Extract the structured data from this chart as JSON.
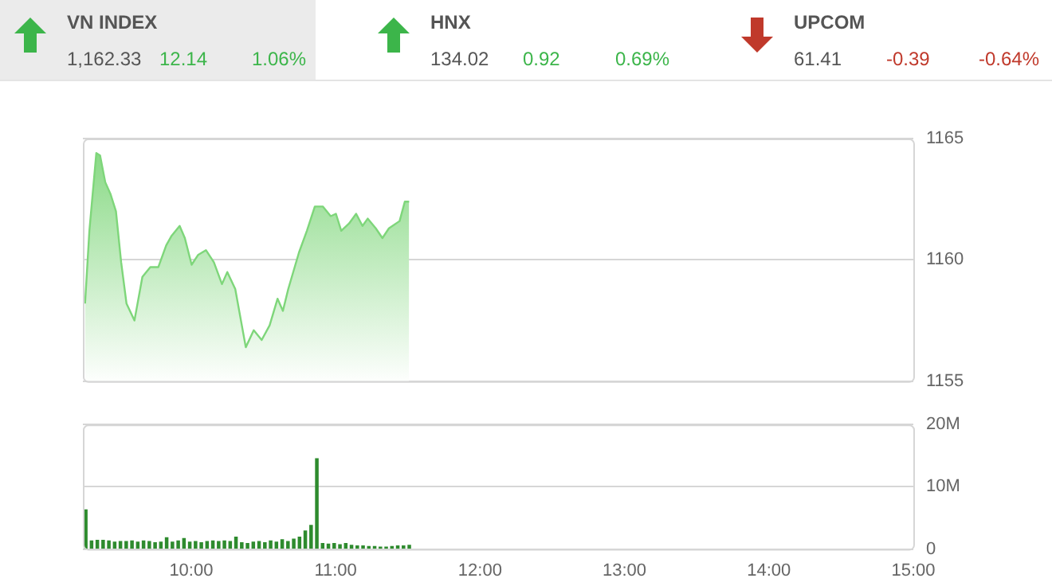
{
  "chart_data": [
    {
      "type": "other",
      "annotations": [
        "VN INDEX",
        "1,162.33",
        "12.14",
        "1.06%",
        "HNX",
        "134.02",
        "0.92",
        "0.69%",
        "UPCOM",
        "61.41",
        "-0.39",
        "-0.64%"
      ]
    },
    {
      "type": "area",
      "x": [
        9.265,
        9.295,
        9.343,
        9.369,
        9.405,
        9.442,
        9.479,
        9.515,
        9.552,
        9.607,
        9.662,
        9.717,
        9.772,
        9.827,
        9.865,
        9.92,
        9.956,
        10.003,
        10.047,
        10.102,
        10.157,
        10.213,
        10.25,
        10.305,
        10.378,
        10.433,
        10.488,
        10.543,
        10.598,
        10.635,
        10.672,
        10.746,
        10.801,
        10.856,
        10.911,
        10.966,
        11.002,
        11.039,
        11.093,
        11.142,
        11.186,
        11.222,
        11.278,
        11.324,
        11.369,
        11.443,
        11.479,
        11.509
      ],
      "series": [
        {
          "color": "#7ed67a",
          "values": [
            1158.2,
            1161.2,
            1164.4,
            1164.3,
            1163.2,
            1162.7,
            1162.0,
            1159.9,
            1158.2,
            1157.5,
            1159.3,
            1159.7,
            1159.7,
            1160.6,
            1161.0,
            1161.4,
            1160.9,
            1159.8,
            1160.2,
            1160.4,
            1159.9,
            1159.0,
            1159.5,
            1158.8,
            1156.4,
            1157.1,
            1156.7,
            1157.3,
            1158.4,
            1157.9,
            1158.8,
            1160.3,
            1161.2,
            1162.2,
            1162.2,
            1161.8,
            1161.9,
            1161.2,
            1161.5,
            1161.9,
            1161.4,
            1161.7,
            1161.3,
            1160.9,
            1161.3,
            1161.6,
            1162.4,
            1162.4
          ]
        }
      ],
      "xlim": [
        9.25,
        15
      ],
      "ylim": [
        1155,
        1165
      ],
      "yticks": [
        1155,
        1160,
        1165
      ],
      "grid": "y",
      "tick_labels": "y"
    },
    {
      "type": "bar",
      "x": [
        9.27,
        9.31,
        9.35,
        9.39,
        9.43,
        9.47,
        9.51,
        9.55,
        9.59,
        9.63,
        9.67,
        9.71,
        9.75,
        9.79,
        9.83,
        9.87,
        9.91,
        9.95,
        9.99,
        10.03,
        10.07,
        10.11,
        10.15,
        10.19,
        10.23,
        10.27,
        10.31,
        10.35,
        10.39,
        10.43,
        10.47,
        10.51,
        10.55,
        10.59,
        10.63,
        10.67,
        10.71,
        10.75,
        10.79,
        10.83,
        10.87,
        10.91,
        10.95,
        10.99,
        11.03,
        11.07,
        11.11,
        11.15,
        11.19,
        11.23,
        11.27,
        11.31,
        11.35,
        11.39,
        11.43,
        11.47,
        11.51
      ],
      "series": [
        {
          "color": "#2e8b2e",
          "values": [
            6.3,
            1.3,
            1.4,
            1.4,
            1.3,
            1.1,
            1.2,
            1.2,
            1.3,
            1.1,
            1.3,
            1.2,
            1.0,
            1.1,
            1.8,
            1.1,
            1.3,
            1.7,
            1.1,
            1.2,
            1.0,
            1.2,
            1.3,
            1.2,
            1.3,
            1.2,
            1.9,
            1.0,
            0.9,
            1.1,
            1.2,
            1.0,
            1.3,
            1.1,
            1.5,
            1.2,
            1.6,
            1.9,
            2.9,
            3.8,
            14.5,
            0.9,
            0.8,
            0.9,
            0.7,
            0.9,
            0.6,
            0.5,
            0.5,
            0.4,
            0.4,
            0.3,
            0.3,
            0.4,
            0.5,
            0.5,
            0.6
          ]
        }
      ],
      "xlim": [
        9.25,
        15
      ],
      "xticks": [
        {
          "value": 10,
          "label": "10:00"
        },
        {
          "value": 11,
          "label": "11:00"
        },
        {
          "value": 12,
          "label": "12:00"
        },
        {
          "value": 13,
          "label": "13:00"
        },
        {
          "value": 14,
          "label": "14:00"
        },
        {
          "value": 15,
          "label": "15:00"
        }
      ],
      "ylim": [
        0,
        20
      ],
      "yticks": [
        0,
        {
          "value": 10,
          "label": "10M"
        },
        {
          "value": 20,
          "label": "20M"
        }
      ],
      "grid": "y"
    }
  ]
}
